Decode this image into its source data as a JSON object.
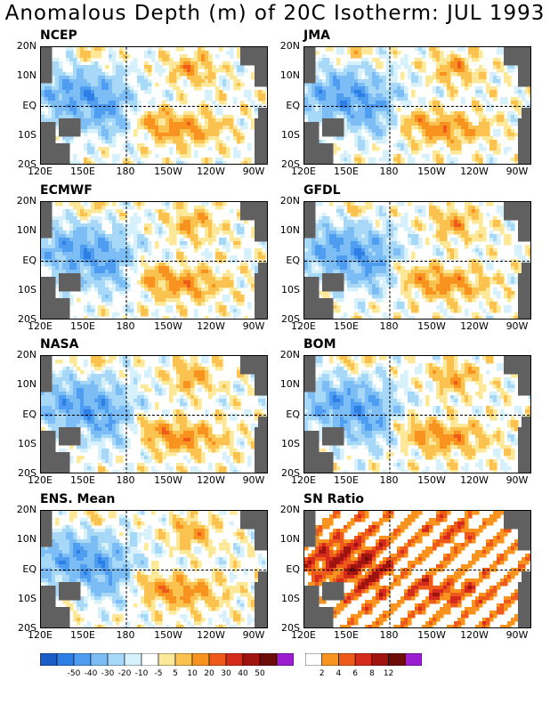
{
  "title": "Anomalous Depth (m) of 20C Isotherm: JUL 1993",
  "panels": [
    {
      "name": "NCEP"
    },
    {
      "name": "JMA"
    },
    {
      "name": "ECMWF"
    },
    {
      "name": "GFDL"
    },
    {
      "name": "NASA"
    },
    {
      "name": "BOM"
    },
    {
      "name": "ENS. Mean"
    },
    {
      "name": "SN Ratio"
    }
  ],
  "lat_labels": [
    "20N",
    "10N",
    "EQ",
    "10S",
    "20S"
  ],
  "lon_labels": [
    "120E",
    "150E",
    "180",
    "150W",
    "120W",
    "90W"
  ],
  "anomaly_colorbar": {
    "colors": [
      "#1a5fc8",
      "#2d7fe6",
      "#4f9df0",
      "#7bbdf4",
      "#a8d8f8",
      "#d6f1fc",
      "#ffffff",
      "#fde89a",
      "#fbc24f",
      "#f7931e",
      "#ee5a1a",
      "#d42b1c",
      "#a01410",
      "#6e0c0a",
      "#9b1fd0"
    ],
    "labels": [
      "-50",
      "-40",
      "-30",
      "-20",
      "-10",
      "-5",
      "5",
      "10",
      "20",
      "30",
      "40",
      "50"
    ]
  },
  "snr_colorbar": {
    "colors": [
      "#ffffff",
      "#f7931e",
      "#ee5a1a",
      "#d42b1c",
      "#a01410",
      "#6e0c0a",
      "#9b1fd0"
    ],
    "labels": [
      "2",
      "4",
      "6",
      "8",
      "12"
    ]
  },
  "chart_data": {
    "type": "heatmap",
    "title": "Anomalous Depth (m) of 20C Isotherm: JUL 1993",
    "lat_range": [
      "20S",
      "20N"
    ],
    "lon_range": [
      "120E",
      "80W"
    ],
    "panels": [
      "NCEP",
      "JMA",
      "ECMWF",
      "GFDL",
      "NASA",
      "BOM",
      "ENS. Mean",
      "SN Ratio"
    ],
    "anomaly_levels": [
      -50,
      -40,
      -30,
      -20,
      -10,
      -5,
      5,
      10,
      20,
      30,
      40,
      50
    ],
    "sn_ratio_levels": [
      2,
      4,
      6,
      8,
      12
    ],
    "pattern_description_values": {
      "western_pacific_equatorial": "negative (-20 to -40)",
      "central_eastern_south_of_equator": "positive (10 to 30)",
      "north_central": "positive (10 to 30)"
    }
  }
}
